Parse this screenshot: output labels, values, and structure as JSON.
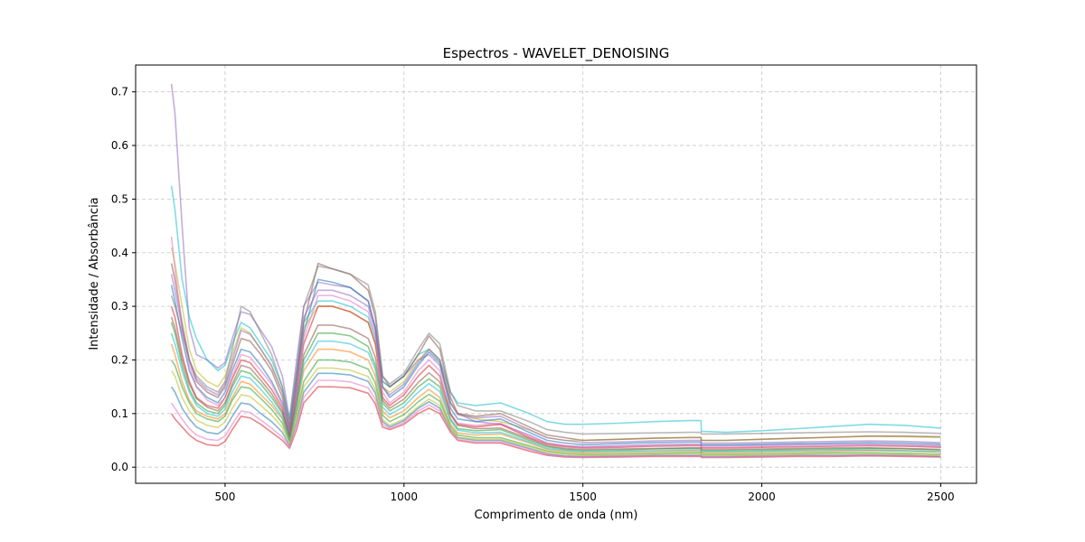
{
  "chart_data": {
    "type": "line",
    "title": "Espectros - WAVELET_DENOISING",
    "xlabel": "Comprimento de onda (nm)",
    "ylabel": "Intensidade / Absorbância",
    "xlim": [
      250,
      2600
    ],
    "ylim": [
      -0.03,
      0.75
    ],
    "xticks": [
      500,
      1000,
      1500,
      2000,
      2500
    ],
    "yticks": [
      0.0,
      0.1,
      0.2,
      0.3,
      0.4,
      0.5,
      0.6,
      0.7
    ],
    "xtick_labels": [
      "500",
      "1000",
      "1500",
      "2000",
      "2500"
    ],
    "ytick_labels": [
      "0.0",
      "0.1",
      "0.2",
      "0.3",
      "0.4",
      "0.5",
      "0.6",
      "0.7"
    ],
    "grid": true,
    "legend": false,
    "x": [
      350,
      360,
      380,
      400,
      420,
      450,
      480,
      500,
      520,
      545,
      570,
      600,
      630,
      660,
      680,
      700,
      720,
      760,
      800,
      850,
      900,
      920,
      940,
      960,
      1000,
      1040,
      1070,
      1100,
      1130,
      1150,
      1200,
      1270,
      1350,
      1400,
      1450,
      1500,
      1600,
      1700,
      1800,
      1830,
      1831,
      1900,
      2000,
      2100,
      2200,
      2300,
      2400,
      2500
    ],
    "series": [
      {
        "color": "#9467bd",
        "values": [
          0.715,
          0.66,
          0.45,
          0.26,
          0.21,
          0.2,
          0.185,
          0.195,
          0.24,
          0.29,
          0.285,
          0.255,
          0.225,
          0.17,
          0.09,
          0.2,
          0.3,
          0.345,
          0.34,
          0.335,
          0.31,
          0.26,
          0.16,
          0.15,
          0.17,
          0.2,
          0.21,
          0.19,
          0.12,
          0.1,
          0.085,
          0.08,
          0.06,
          0.045,
          0.04,
          0.038,
          0.04,
          0.042,
          0.043,
          0.043,
          0.04,
          0.04,
          0.041,
          0.042,
          0.043,
          0.043,
          0.042,
          0.04
        ]
      },
      {
        "color": "#17becf",
        "values": [
          0.525,
          0.48,
          0.35,
          0.28,
          0.24,
          0.2,
          0.18,
          0.19,
          0.23,
          0.27,
          0.26,
          0.23,
          0.2,
          0.15,
          0.09,
          0.18,
          0.27,
          0.31,
          0.31,
          0.3,
          0.28,
          0.24,
          0.16,
          0.15,
          0.17,
          0.21,
          0.22,
          0.2,
          0.14,
          0.12,
          0.115,
          0.12,
          0.1,
          0.085,
          0.08,
          0.08,
          0.082,
          0.085,
          0.087,
          0.087,
          0.067,
          0.065,
          0.068,
          0.072,
          0.076,
          0.08,
          0.078,
          0.073
        ]
      },
      {
        "color": "#bcbd22",
        "values": [
          0.41,
          0.38,
          0.3,
          0.22,
          0.18,
          0.16,
          0.15,
          0.17,
          0.21,
          0.26,
          0.25,
          0.22,
          0.19,
          0.14,
          0.08,
          0.17,
          0.26,
          0.3,
          0.3,
          0.29,
          0.27,
          0.23,
          0.15,
          0.14,
          0.16,
          0.2,
          0.22,
          0.2,
          0.12,
          0.1,
          0.09,
          0.085,
          0.07,
          0.055,
          0.05,
          0.05,
          0.052,
          0.054,
          0.056,
          0.056,
          0.05,
          0.05,
          0.052,
          0.054,
          0.056,
          0.058,
          0.057,
          0.055
        ]
      },
      {
        "color": "#8c564b",
        "values": [
          0.38,
          0.35,
          0.27,
          0.2,
          0.16,
          0.14,
          0.13,
          0.15,
          0.19,
          0.24,
          0.235,
          0.21,
          0.18,
          0.13,
          0.07,
          0.16,
          0.27,
          0.38,
          0.37,
          0.36,
          0.33,
          0.28,
          0.17,
          0.15,
          0.17,
          0.21,
          0.245,
          0.22,
          0.13,
          0.1,
          0.095,
          0.1,
          0.075,
          0.06,
          0.055,
          0.05,
          0.052,
          0.054,
          0.055,
          0.055,
          0.05,
          0.05,
          0.052,
          0.054,
          0.056,
          0.058,
          0.058,
          0.057
        ]
      },
      {
        "color": "#1f77b4",
        "values": [
          0.34,
          0.31,
          0.24,
          0.18,
          0.15,
          0.13,
          0.12,
          0.14,
          0.18,
          0.22,
          0.215,
          0.19,
          0.16,
          0.12,
          0.065,
          0.15,
          0.25,
          0.35,
          0.345,
          0.335,
          0.31,
          0.26,
          0.15,
          0.13,
          0.15,
          0.19,
          0.215,
          0.195,
          0.11,
          0.09,
          0.085,
          0.09,
          0.065,
          0.05,
          0.045,
          0.042,
          0.044,
          0.046,
          0.047,
          0.047,
          0.042,
          0.042,
          0.043,
          0.044,
          0.045,
          0.046,
          0.045,
          0.043
        ]
      },
      {
        "color": "#d62728",
        "values": [
          0.3,
          0.28,
          0.21,
          0.16,
          0.13,
          0.115,
          0.11,
          0.13,
          0.165,
          0.2,
          0.195,
          0.17,
          0.145,
          0.11,
          0.06,
          0.14,
          0.23,
          0.3,
          0.3,
          0.29,
          0.27,
          0.23,
          0.13,
          0.115,
          0.135,
          0.17,
          0.19,
          0.17,
          0.1,
          0.08,
          0.075,
          0.08,
          0.055,
          0.043,
          0.038,
          0.036,
          0.037,
          0.039,
          0.04,
          0.04,
          0.036,
          0.036,
          0.037,
          0.038,
          0.039,
          0.04,
          0.039,
          0.037
        ]
      },
      {
        "color": "#2ca02c",
        "values": [
          0.27,
          0.25,
          0.19,
          0.145,
          0.12,
          0.105,
          0.1,
          0.115,
          0.15,
          0.18,
          0.175,
          0.155,
          0.13,
          0.1,
          0.055,
          0.12,
          0.2,
          0.25,
          0.25,
          0.245,
          0.225,
          0.19,
          0.12,
          0.105,
          0.12,
          0.15,
          0.165,
          0.15,
          0.09,
          0.072,
          0.068,
          0.07,
          0.05,
          0.038,
          0.033,
          0.031,
          0.032,
          0.034,
          0.035,
          0.035,
          0.031,
          0.031,
          0.032,
          0.033,
          0.034,
          0.035,
          0.034,
          0.032
        ]
      },
      {
        "color": "#e377c2",
        "values": [
          0.43,
          0.37,
          0.26,
          0.19,
          0.15,
          0.125,
          0.115,
          0.13,
          0.17,
          0.21,
          0.205,
          0.18,
          0.155,
          0.115,
          0.06,
          0.14,
          0.24,
          0.32,
          0.32,
          0.31,
          0.29,
          0.245,
          0.14,
          0.12,
          0.14,
          0.18,
          0.2,
          0.18,
          0.1,
          0.082,
          0.078,
          0.082,
          0.058,
          0.045,
          0.04,
          0.037,
          0.038,
          0.04,
          0.041,
          0.041,
          0.037,
          0.037,
          0.038,
          0.039,
          0.04,
          0.041,
          0.04,
          0.038
        ]
      },
      {
        "color": "#ff7f0e",
        "values": [
          0.23,
          0.21,
          0.16,
          0.125,
          0.105,
          0.095,
          0.09,
          0.1,
          0.13,
          0.16,
          0.155,
          0.135,
          0.115,
          0.09,
          0.05,
          0.11,
          0.18,
          0.22,
          0.22,
          0.215,
          0.2,
          0.17,
          0.105,
          0.092,
          0.105,
          0.13,
          0.145,
          0.13,
          0.08,
          0.064,
          0.06,
          0.062,
          0.045,
          0.033,
          0.029,
          0.027,
          0.028,
          0.029,
          0.03,
          0.03,
          0.027,
          0.027,
          0.028,
          0.029,
          0.03,
          0.031,
          0.03,
          0.028
        ]
      },
      {
        "color": "#7f7f7f",
        "values": [
          0.32,
          0.3,
          0.25,
          0.2,
          0.17,
          0.15,
          0.14,
          0.16,
          0.22,
          0.3,
          0.29,
          0.25,
          0.21,
          0.15,
          0.08,
          0.18,
          0.3,
          0.375,
          0.37,
          0.36,
          0.34,
          0.29,
          0.17,
          0.155,
          0.175,
          0.22,
          0.25,
          0.23,
          0.14,
          0.115,
          0.105,
          0.105,
          0.085,
          0.07,
          0.065,
          0.062,
          0.063,
          0.064,
          0.065,
          0.065,
          0.062,
          0.062,
          0.063,
          0.064,
          0.065,
          0.066,
          0.065,
          0.063
        ]
      },
      {
        "color": "#d62728",
        "values": [
          0.1,
          0.09,
          0.075,
          0.06,
          0.05,
          0.042,
          0.04,
          0.048,
          0.07,
          0.095,
          0.092,
          0.08,
          0.065,
          0.05,
          0.035,
          0.07,
          0.12,
          0.15,
          0.15,
          0.148,
          0.138,
          0.118,
          0.075,
          0.07,
          0.08,
          0.1,
          0.11,
          0.1,
          0.065,
          0.05,
          0.045,
          0.045,
          0.03,
          0.022,
          0.019,
          0.018,
          0.019,
          0.02,
          0.02,
          0.02,
          0.018,
          0.018,
          0.019,
          0.02,
          0.02,
          0.021,
          0.02,
          0.019
        ]
      },
      {
        "color": "#1f77b4",
        "values": [
          0.15,
          0.14,
          0.11,
          0.09,
          0.075,
          0.065,
          0.062,
          0.072,
          0.095,
          0.12,
          0.117,
          0.1,
          0.085,
          0.065,
          0.04,
          0.085,
          0.14,
          0.175,
          0.175,
          0.172,
          0.16,
          0.138,
          0.085,
          0.075,
          0.087,
          0.11,
          0.122,
          0.11,
          0.07,
          0.055,
          0.05,
          0.05,
          0.035,
          0.025,
          0.021,
          0.02,
          0.021,
          0.022,
          0.022,
          0.022,
          0.02,
          0.02,
          0.021,
          0.022,
          0.022,
          0.023,
          0.022,
          0.02
        ]
      },
      {
        "color": "#2ca02c",
        "values": [
          0.2,
          0.19,
          0.15,
          0.12,
          0.1,
          0.09,
          0.085,
          0.095,
          0.125,
          0.15,
          0.147,
          0.128,
          0.108,
          0.082,
          0.048,
          0.1,
          0.16,
          0.2,
          0.2,
          0.196,
          0.183,
          0.157,
          0.097,
          0.085,
          0.098,
          0.122,
          0.136,
          0.123,
          0.076,
          0.06,
          0.055,
          0.055,
          0.04,
          0.03,
          0.026,
          0.024,
          0.025,
          0.026,
          0.027,
          0.027,
          0.024,
          0.024,
          0.025,
          0.026,
          0.027,
          0.027,
          0.026,
          0.024
        ]
      },
      {
        "color": "#9467bd",
        "values": [
          0.36,
          0.33,
          0.26,
          0.2,
          0.165,
          0.145,
          0.135,
          0.155,
          0.2,
          0.255,
          0.248,
          0.22,
          0.188,
          0.14,
          0.075,
          0.17,
          0.28,
          0.33,
          0.33,
          0.32,
          0.3,
          0.255,
          0.15,
          0.135,
          0.155,
          0.195,
          0.22,
          0.2,
          0.12,
          0.098,
          0.092,
          0.095,
          0.07,
          0.055,
          0.05,
          0.046,
          0.047,
          0.049,
          0.05,
          0.05,
          0.045,
          0.045,
          0.046,
          0.047,
          0.048,
          0.049,
          0.048,
          0.046
        ]
      },
      {
        "color": "#17becf",
        "values": [
          0.25,
          0.23,
          0.18,
          0.14,
          0.115,
          0.1,
          0.095,
          0.108,
          0.14,
          0.17,
          0.166,
          0.145,
          0.122,
          0.093,
          0.052,
          0.115,
          0.19,
          0.235,
          0.235,
          0.23,
          0.214,
          0.183,
          0.112,
          0.098,
          0.113,
          0.14,
          0.156,
          0.141,
          0.087,
          0.069,
          0.064,
          0.065,
          0.047,
          0.035,
          0.031,
          0.029,
          0.03,
          0.031,
          0.032,
          0.032,
          0.029,
          0.029,
          0.03,
          0.031,
          0.032,
          0.032,
          0.031,
          0.029
        ]
      },
      {
        "color": "#bcbd22",
        "values": [
          0.18,
          0.17,
          0.13,
          0.105,
          0.088,
          0.078,
          0.074,
          0.084,
          0.11,
          0.135,
          0.132,
          0.115,
          0.097,
          0.074,
          0.044,
          0.09,
          0.15,
          0.185,
          0.185,
          0.181,
          0.169,
          0.145,
          0.089,
          0.078,
          0.09,
          0.113,
          0.127,
          0.115,
          0.071,
          0.056,
          0.052,
          0.052,
          0.038,
          0.028,
          0.024,
          0.022,
          0.023,
          0.024,
          0.025,
          0.025,
          0.022,
          0.022,
          0.023,
          0.024,
          0.025,
          0.025,
          0.024,
          0.022
        ]
      },
      {
        "color": "#8c564b",
        "values": [
          0.28,
          0.26,
          0.2,
          0.155,
          0.128,
          0.112,
          0.105,
          0.12,
          0.155,
          0.19,
          0.185,
          0.162,
          0.137,
          0.104,
          0.058,
          0.128,
          0.21,
          0.265,
          0.265,
          0.258,
          0.24,
          0.205,
          0.125,
          0.11,
          0.127,
          0.158,
          0.176,
          0.159,
          0.098,
          0.078,
          0.072,
          0.073,
          0.053,
          0.04,
          0.035,
          0.033,
          0.034,
          0.035,
          0.036,
          0.036,
          0.033,
          0.033,
          0.034,
          0.035,
          0.036,
          0.036,
          0.035,
          0.033
        ]
      },
      {
        "color": "#e377c2",
        "values": [
          0.12,
          0.11,
          0.09,
          0.072,
          0.06,
          0.052,
          0.05,
          0.058,
          0.08,
          0.105,
          0.102,
          0.088,
          0.073,
          0.056,
          0.038,
          0.078,
          0.13,
          0.162,
          0.162,
          0.159,
          0.148,
          0.127,
          0.08,
          0.072,
          0.083,
          0.105,
          0.116,
          0.105,
          0.067,
          0.052,
          0.047,
          0.047,
          0.033,
          0.024,
          0.02,
          0.019,
          0.02,
          0.021,
          0.021,
          0.021,
          0.019,
          0.019,
          0.02,
          0.021,
          0.021,
          0.022,
          0.021,
          0.02
        ]
      }
    ]
  }
}
